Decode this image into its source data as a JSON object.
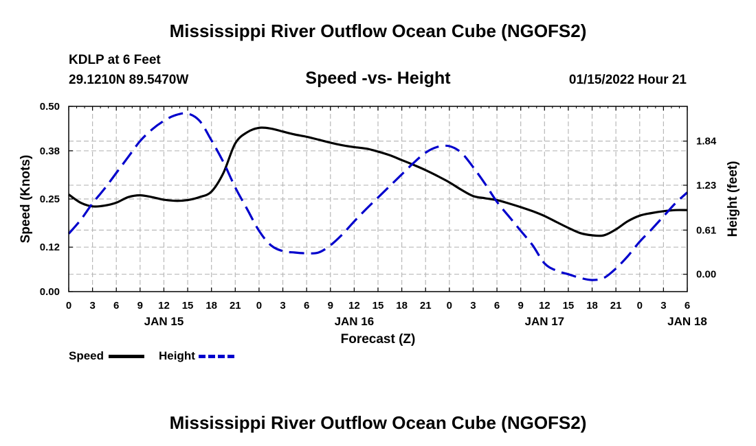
{
  "title": "Mississippi River Outflow Ocean Cube (NGOFS2)",
  "station": {
    "name": "KDLP at 6 Feet",
    "coords": "29.1210N  89.5470W",
    "datetime": "01/15/2022 Hour 21"
  },
  "chart_data": {
    "type": "line",
    "title": "Speed -vs- Height",
    "xlabel": "Forecast (Z)",
    "ylabel": "Speed (Knots)",
    "y2label": "Height (feet)",
    "x_unit": "hours since JAN 15 00Z",
    "xlim": [
      0,
      78
    ],
    "ylim": [
      0,
      0.5
    ],
    "y2lim": [
      -0.24,
      2.32
    ],
    "x_ticks": [
      0,
      3,
      6,
      9,
      12,
      15,
      18,
      21,
      24,
      27,
      30,
      33,
      36,
      39,
      42,
      45,
      48,
      51,
      54,
      57,
      60,
      63,
      66,
      69,
      72,
      75,
      78
    ],
    "x_tick_labels": [
      "0",
      "3",
      "6",
      "9",
      "12",
      "15",
      "18",
      "21",
      "0",
      "3",
      "6",
      "9",
      "12",
      "15",
      "18",
      "21",
      "0",
      "3",
      "6",
      "9",
      "12",
      "15",
      "18",
      "21",
      "0",
      "3",
      "6"
    ],
    "date_labels": [
      {
        "x": 12,
        "label": "JAN 15"
      },
      {
        "x": 36,
        "label": "JAN 16"
      },
      {
        "x": 60,
        "label": "JAN 17"
      },
      {
        "x": 78,
        "label": "JAN 18"
      }
    ],
    "y_ticks": [
      0,
      0.12,
      0.25,
      0.38,
      0.5
    ],
    "y_tick_labels": [
      "0.00",
      "0.12",
      "0.25",
      "0.38",
      "0.50"
    ],
    "y2_ticks": [
      0.0,
      0.61,
      1.23,
      1.84
    ],
    "y2_tick_labels": [
      "0.00",
      "0.61",
      "1.23",
      "1.84"
    ],
    "grid": true,
    "legend": [
      {
        "name": "Speed",
        "color": "#000000",
        "style": "solid"
      },
      {
        "name": "Height",
        "color": "#0000cc",
        "style": "dashed"
      }
    ],
    "series": [
      {
        "name": "Speed",
        "axis": "left",
        "color": "#000000",
        "x": [
          0,
          1.5,
          3,
          4.5,
          6,
          7.5,
          9,
          10.5,
          12,
          13.5,
          15,
          16.5,
          18,
          19.5,
          21,
          22.5,
          24,
          25.5,
          27,
          28.5,
          30,
          31.5,
          33,
          34.5,
          36,
          37.5,
          39,
          40.5,
          42,
          43.5,
          45,
          46.5,
          48,
          49.5,
          51,
          52.5,
          54,
          55.5,
          57,
          58.5,
          60,
          61.5,
          63,
          64.5,
          66,
          67.5,
          69,
          70.5,
          72,
          73.5,
          75,
          76.5,
          78
        ],
        "values": [
          0.262,
          0.24,
          0.23,
          0.232,
          0.24,
          0.255,
          0.26,
          0.255,
          0.248,
          0.245,
          0.247,
          0.255,
          0.27,
          0.32,
          0.4,
          0.43,
          0.442,
          0.44,
          0.432,
          0.424,
          0.418,
          0.41,
          0.402,
          0.395,
          0.39,
          0.386,
          0.378,
          0.368,
          0.355,
          0.342,
          0.328,
          0.312,
          0.295,
          0.275,
          0.258,
          0.252,
          0.247,
          0.238,
          0.228,
          0.217,
          0.204,
          0.188,
          0.172,
          0.158,
          0.152,
          0.152,
          0.168,
          0.19,
          0.205,
          0.212,
          0.217,
          0.22,
          0.22
        ]
      },
      {
        "name": "Height",
        "axis": "right",
        "color": "#0000cc",
        "x": [
          0,
          1.5,
          3,
          4.5,
          6,
          7.5,
          9,
          10.5,
          12,
          13.5,
          15,
          16.5,
          18,
          19.5,
          21,
          22.5,
          24,
          25.5,
          27,
          28.5,
          30,
          31.5,
          33,
          34.5,
          36,
          37.5,
          39,
          40.5,
          42,
          43.5,
          45,
          46.5,
          48,
          49.5,
          51,
          52.5,
          54,
          55.5,
          57,
          58.5,
          60,
          61.5,
          63,
          64.5,
          66,
          67.5,
          69,
          70.5,
          72,
          73.5,
          75,
          76.5,
          78
        ],
        "values": [
          0.56,
          0.75,
          0.98,
          1.18,
          1.4,
          1.62,
          1.84,
          2.0,
          2.12,
          2.2,
          2.22,
          2.12,
          1.85,
          1.55,
          1.2,
          0.9,
          0.6,
          0.4,
          0.32,
          0.3,
          0.29,
          0.3,
          0.4,
          0.55,
          0.73,
          0.9,
          1.06,
          1.22,
          1.38,
          1.54,
          1.68,
          1.76,
          1.77,
          1.68,
          1.48,
          1.25,
          1.0,
          0.8,
          0.6,
          0.4,
          0.15,
          0.05,
          0.0,
          -0.05,
          -0.08,
          -0.05,
          0.08,
          0.25,
          0.45,
          0.62,
          0.8,
          0.98,
          1.13
        ]
      }
    ]
  }
}
